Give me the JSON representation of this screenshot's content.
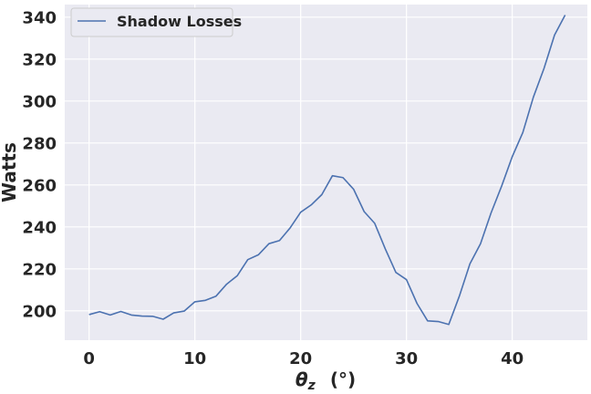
{
  "chart_data": {
    "type": "line",
    "title": "",
    "xlabel": "θz (°)",
    "xlabel_parts": {
      "symbol": "θ",
      "subscript": "z",
      "unit": "(°)"
    },
    "ylabel": "Watts",
    "xlim": [
      -2.3,
      47.1
    ],
    "ylim": [
      186,
      346
    ],
    "xticks": [
      0,
      10,
      20,
      30,
      40
    ],
    "yticks": [
      200,
      220,
      240,
      260,
      280,
      300,
      320,
      340
    ],
    "grid": true,
    "legend_position": "top-left",
    "background_color": "#eaeaf2",
    "grid_color": "#ffffff",
    "series": [
      {
        "name": "Shadow Losses",
        "color": "#4c72b0",
        "x": [
          0,
          1,
          2,
          3,
          4,
          5,
          6,
          7,
          8,
          9,
          10,
          11,
          12,
          13,
          14,
          15,
          16,
          17,
          18,
          19,
          20,
          21,
          22,
          23,
          24,
          25,
          26,
          27,
          28,
          29,
          30,
          31,
          32,
          33,
          34,
          35,
          36,
          37,
          38,
          39,
          40,
          41,
          42,
          43,
          44,
          45
        ],
        "y": [
          198.2,
          199.6,
          198.0,
          199.7,
          198.0,
          197.5,
          197.4,
          196.0,
          199.0,
          199.9,
          204.3,
          205.0,
          207.0,
          212.7,
          216.7,
          224.4,
          226.7,
          232.0,
          233.5,
          239.5,
          247.0,
          250.5,
          255.4,
          264.4,
          263.5,
          258.0,
          247.3,
          241.7,
          229.5,
          218.3,
          214.9,
          203.5,
          195.2,
          194.9,
          193.5,
          207.0,
          222.4,
          232.0,
          246.7,
          259.5,
          273.5,
          285.0,
          301.9,
          315.5,
          331.5,
          341.0
        ]
      }
    ]
  }
}
